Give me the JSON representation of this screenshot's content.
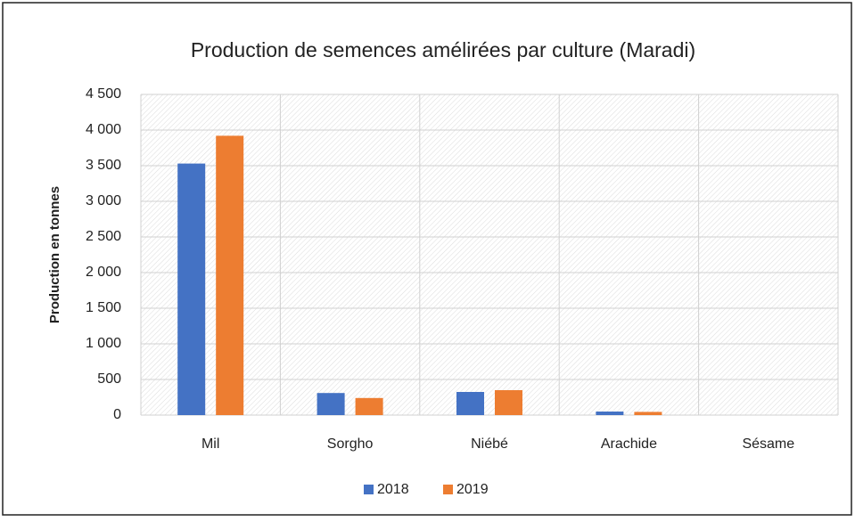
{
  "chart_data": {
    "type": "bar",
    "title": "Production de semences amélirées par culture (Maradi)",
    "y_label": "Production en tonnes",
    "categories": [
      "Mil",
      "Sorgho",
      "Niébé",
      "Arachide",
      "Sésame"
    ],
    "series": [
      {
        "name": "2018",
        "color": "#4472c4",
        "values": [
          3530,
          310,
          325,
          50,
          0
        ]
      },
      {
        "name": "2019",
        "color": "#ed7d31",
        "values": [
          3920,
          240,
          350,
          45,
          0
        ]
      }
    ],
    "ylim": [
      0,
      4500
    ],
    "yticks": [
      0,
      500,
      {
        "value": 1000,
        "label": "1 000"
      },
      {
        "value": 1500,
        "label": "1 500"
      },
      {
        "value": 2000,
        "label": "2 000"
      },
      {
        "value": 2500,
        "label": "2 500"
      },
      {
        "value": 3000,
        "label": "3 000"
      },
      {
        "value": 3500,
        "label": "3 500"
      },
      {
        "value": 4000,
        "label": "4 000"
      },
      {
        "value": 4500,
        "label": "4 500"
      }
    ],
    "grid": true,
    "legend": "bottom"
  }
}
